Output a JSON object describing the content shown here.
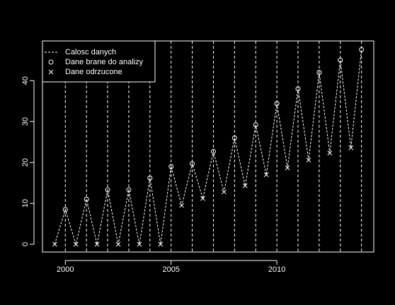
{
  "chart_data": {
    "type": "line",
    "series": [
      {
        "name": "Calosc danych",
        "color": "#ffffff",
        "style": "dashed",
        "x": [
          1999.5,
          2000,
          2000.5,
          2001,
          2001.5,
          2002,
          2002.5,
          2003,
          2003.5,
          2004,
          2004.5,
          2005,
          2005.5,
          2006,
          2006.5,
          2007,
          2007.5,
          2008,
          2008.5,
          2009,
          2009.5,
          2010,
          2010.5,
          2011,
          2011.5,
          2012,
          2012.5,
          2013,
          2013.5,
          2014
        ],
        "values": [
          0,
          8.5,
          0,
          11,
          0,
          13.3,
          0,
          13.3,
          0,
          16.2,
          0,
          19,
          9.5,
          19.7,
          11.2,
          22.7,
          12.8,
          26,
          14.3,
          29.2,
          17,
          34.4,
          18.7,
          38,
          20.6,
          42,
          22.3,
          45,
          23.6,
          47.6
        ]
      },
      {
        "name": "Dane brane do analizy",
        "color": "#ffffff",
        "marker": "circle",
        "x": [
          2000,
          2001,
          2002,
          2003,
          2004,
          2005,
          2006,
          2007,
          2008,
          2009,
          2010,
          2011,
          2012,
          2013,
          2014
        ],
        "values": [
          8.5,
          11,
          13.3,
          13.3,
          16.2,
          19,
          19.7,
          22.7,
          26,
          29.2,
          34.4,
          38,
          42,
          45,
          47.6
        ]
      },
      {
        "name": "Dane odrzucone",
        "color": "#ffffff",
        "marker": "cross",
        "x": [
          1999.5,
          2000.5,
          2001.5,
          2002.5,
          2003.5,
          2004.5,
          2005.5,
          2006.5,
          2007.5,
          2008.5,
          2009.5,
          2010.5,
          2011.5,
          2012.5,
          2013.5
        ],
        "values": [
          0,
          0,
          0,
          0,
          0,
          0,
          9.5,
          11.2,
          12.8,
          14.3,
          17,
          18.7,
          20.6,
          22.3,
          23.6
        ]
      }
    ],
    "vlines": [
      2000,
      2001,
      2002,
      2003,
      2004,
      2005,
      2006,
      2007,
      2008,
      2009,
      2010,
      2011,
      2012,
      2013,
      2014
    ],
    "xlim": [
      1998.92,
      2014.58
    ],
    "ylim": [
      -1.9,
      49.7
    ],
    "xticks": [
      2000,
      2005,
      2010
    ],
    "yticks": [
      0,
      10,
      20,
      30,
      40
    ],
    "legend": "top-left"
  }
}
